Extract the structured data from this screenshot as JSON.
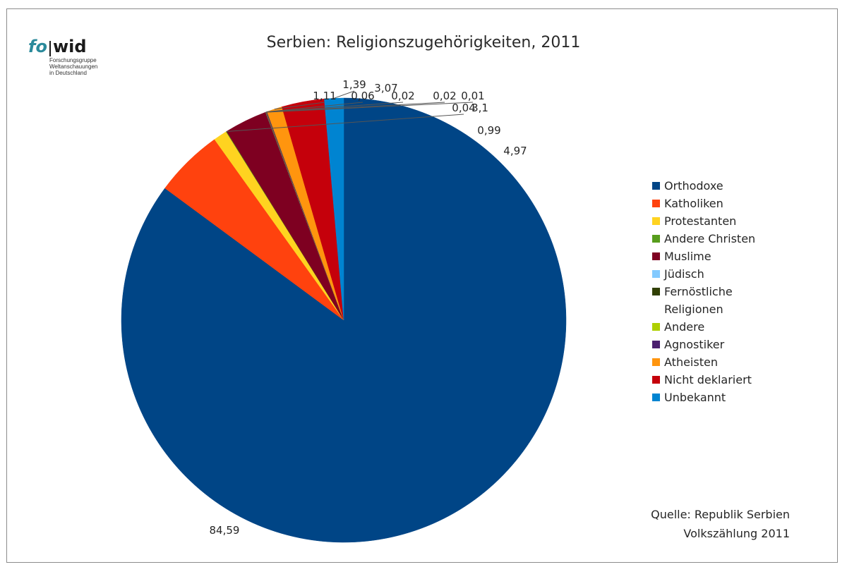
{
  "logo": {
    "fo": "fo",
    "wid": "wid",
    "subtitle_lines": [
      "Forschungsgruppe",
      "Weltanschauungen",
      "in Deutschland"
    ]
  },
  "chart_data": {
    "type": "pie",
    "title": "Serbien: Religionszugehörigkeiten, 2011",
    "categories": [
      "Orthodoxe",
      "Katholiken",
      "Protestanten",
      "Andere Christen",
      "Muslime",
      "Jüdisch",
      "Fernöstliche Religionen",
      "Andere",
      "Agnostiker",
      "Atheisten",
      "Nicht deklariert",
      "Unbekannt"
    ],
    "values": [
      84.59,
      4.97,
      0.99,
      0.04,
      3.1,
      0.01,
      0.02,
      0.02,
      0.06,
      1.11,
      3.07,
      1.39
    ],
    "value_labels": [
      "84,59",
      "4,97",
      "0,99",
      "0,04",
      "3,1",
      "0,01",
      "0,02",
      "0,02",
      "0,06",
      "1,11",
      "3,07",
      "1,39"
    ],
    "colors": [
      "#004586",
      "#ff420e",
      "#ffd320",
      "#579d1c",
      "#7e0021",
      "#83caff",
      "#314004",
      "#aecf00",
      "#4b1f6f",
      "#ff950e",
      "#c5000b",
      "#0084d1"
    ],
    "legend_position": "right"
  },
  "legend": {
    "items": [
      "Orthodoxe",
      "Katholiken",
      "Protestanten",
      "Andere Christen",
      "Muslime",
      "Jüdisch",
      "Fernöstliche Religionen",
      "Andere",
      "Agnostiker",
      "Atheisten",
      "Nicht deklariert",
      "Unbekannt"
    ]
  },
  "source": {
    "line1": "Quelle: Republik Serbien",
    "line2": "Volkszählung 2011"
  }
}
